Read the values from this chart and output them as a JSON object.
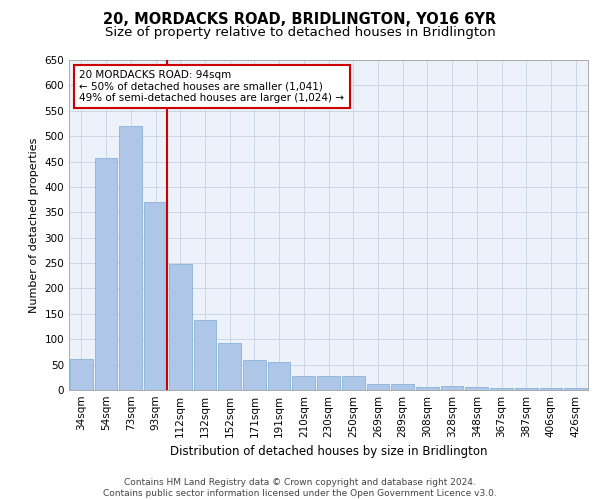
{
  "title": "20, MORDACKS ROAD, BRIDLINGTON, YO16 6YR",
  "subtitle": "Size of property relative to detached houses in Bridlington",
  "xlabel": "Distribution of detached houses by size in Bridlington",
  "ylabel": "Number of detached properties",
  "categories": [
    "34sqm",
    "54sqm",
    "73sqm",
    "93sqm",
    "112sqm",
    "132sqm",
    "152sqm",
    "171sqm",
    "191sqm",
    "210sqm",
    "230sqm",
    "250sqm",
    "269sqm",
    "289sqm",
    "308sqm",
    "328sqm",
    "348sqm",
    "367sqm",
    "387sqm",
    "406sqm",
    "426sqm"
  ],
  "values": [
    62,
    457,
    520,
    370,
    248,
    138,
    92,
    60,
    55,
    27,
    27,
    27,
    12,
    12,
    5,
    8,
    5,
    4,
    4,
    4,
    4
  ],
  "bar_color": "#aec6e8",
  "bar_edge_color": "#7aadd4",
  "reference_line_color": "#cc0000",
  "annotation_text": "20 MORDACKS ROAD: 94sqm\n← 50% of detached houses are smaller (1,041)\n49% of semi-detached houses are larger (1,024) →",
  "annotation_box_color": "#ffffff",
  "annotation_box_edge": "#cc0000",
  "ylim": [
    0,
    650
  ],
  "yticks": [
    0,
    50,
    100,
    150,
    200,
    250,
    300,
    350,
    400,
    450,
    500,
    550,
    600,
    650
  ],
  "grid_color": "#ccd5e8",
  "background_color": "#edf1f9",
  "footer_text": "Contains HM Land Registry data © Crown copyright and database right 2024.\nContains public sector information licensed under the Open Government Licence v3.0.",
  "title_fontsize": 10.5,
  "subtitle_fontsize": 9.5,
  "xlabel_fontsize": 8.5,
  "ylabel_fontsize": 8,
  "tick_fontsize": 7.5,
  "annotation_fontsize": 7.5,
  "footer_fontsize": 6.5
}
